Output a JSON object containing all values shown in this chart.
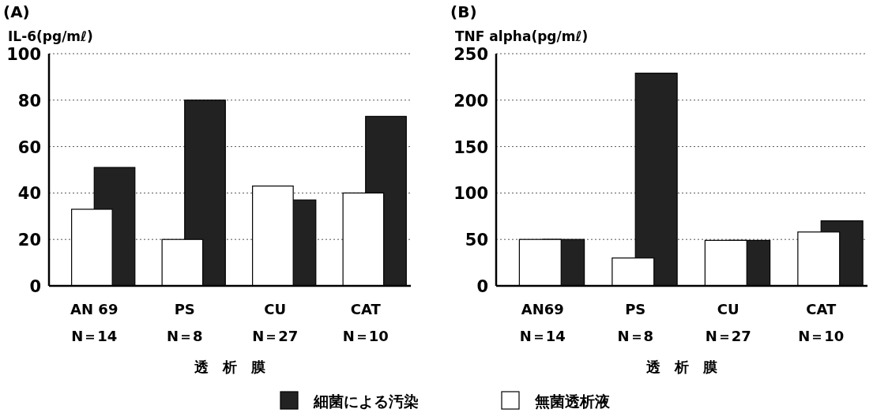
{
  "chart_data": [
    {
      "type": "bar",
      "title": "(A)",
      "ylabel": "IL-6(pg/mℓ)",
      "xlabel": "透　析　膜",
      "categories": [
        "AN 69\nN＝14",
        "PS\nN＝8",
        "CU\nN＝27",
        "CAT\nN＝10"
      ],
      "series": [
        {
          "color": "#ffffff",
          "values": [
            33,
            20,
            43,
            40
          ]
        },
        {
          "color": "#222222",
          "values": [
            51,
            80,
            37,
            73
          ]
        }
      ],
      "ylim": [
        0,
        100
      ],
      "yticks": [
        0,
        20,
        40,
        60,
        80,
        100
      ],
      "grid": "y",
      "legend": false
    },
    {
      "type": "bar",
      "title": "(B)",
      "ylabel": "TNF alpha(pg/mℓ)",
      "xlabel": "透　析　膜",
      "categories": [
        "AN69\nN＝14",
        "PS\nN＝8",
        "CU\nN＝27",
        "CAT\nN＝10"
      ],
      "series": [
        {
          "name": "無菌透析液",
          "color": "#ffffff",
          "values": [
            50,
            30,
            49,
            58
          ]
        },
        {
          "name": "細菌による汚染",
          "color": "#222222",
          "values": [
            50,
            229,
            49,
            70
          ]
        }
      ],
      "ylim": [
        0,
        250
      ],
      "yticks": [
        0,
        50,
        100,
        150,
        200,
        250
      ],
      "grid": "y",
      "legend": "bottom"
    }
  ]
}
